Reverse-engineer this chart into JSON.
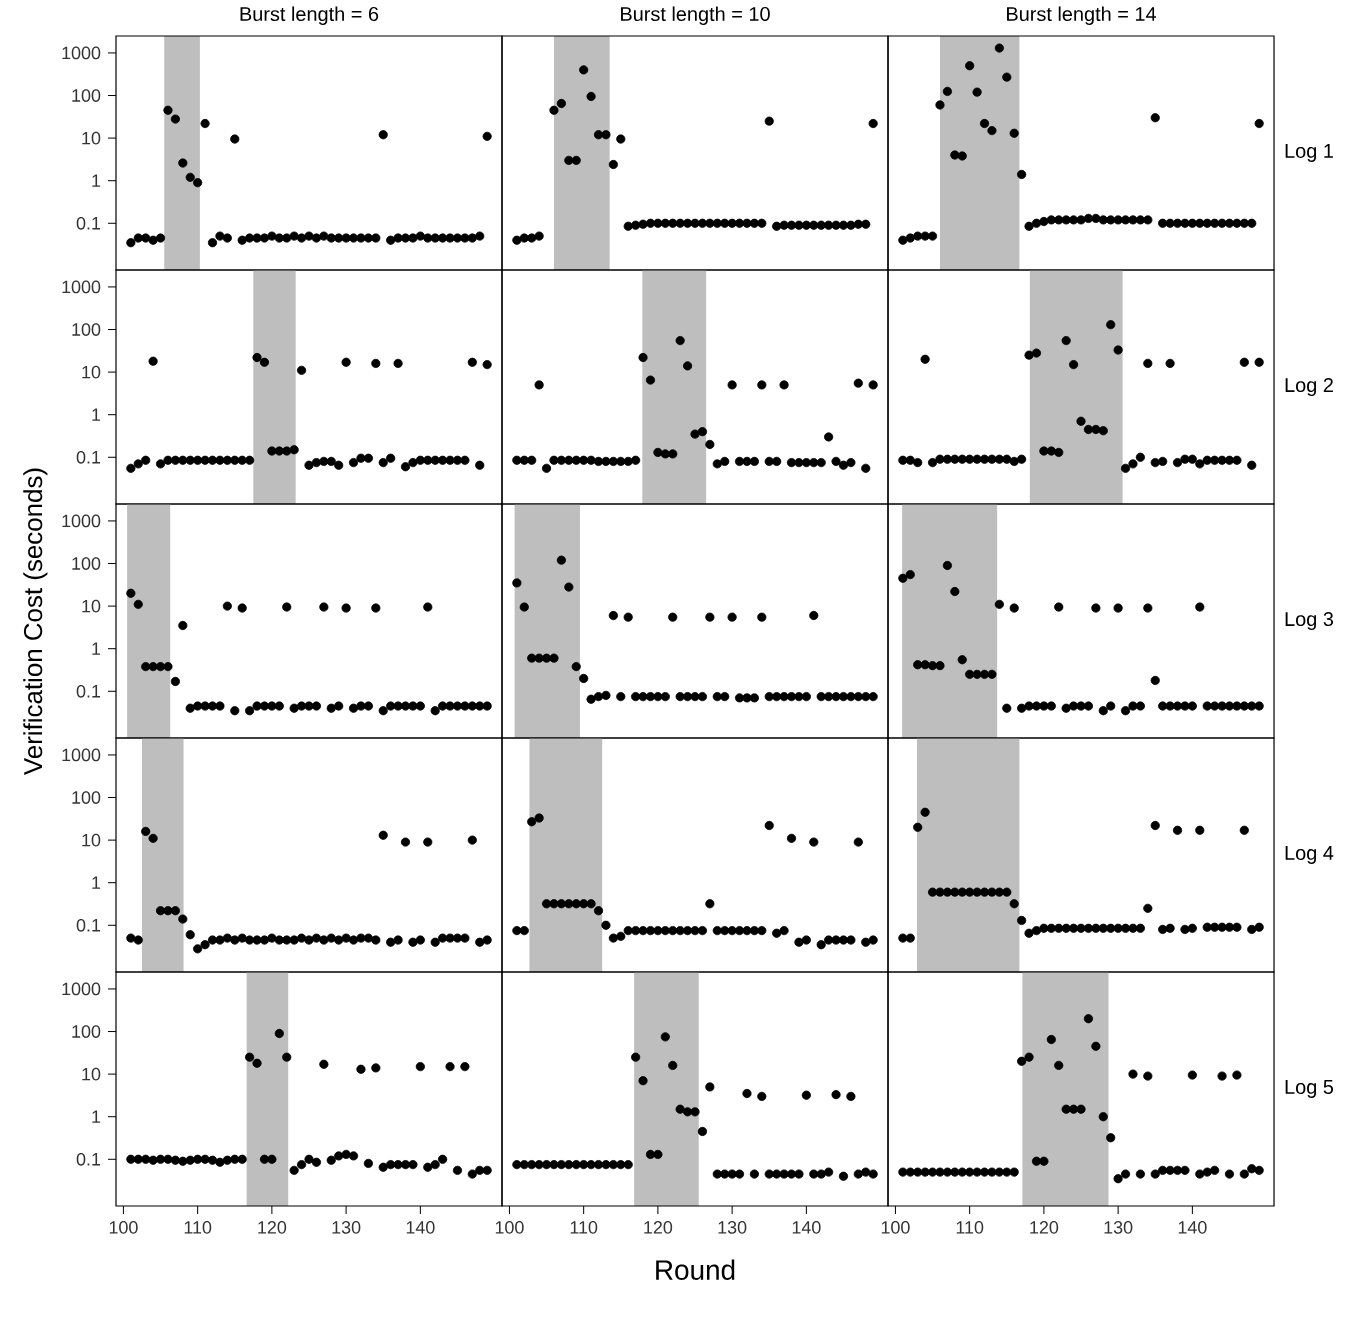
{
  "chart_data": [
    {
      "type": "scatter",
      "title": "Burst length = 6",
      "tick_labels": "y",
      "marker": "circle",
      "color": "#000000",
      "log": true,
      "xlim": [
        99,
        151
      ],
      "ylim": [
        0.008,
        2500
      ],
      "xticks": [
        100,
        110,
        120,
        130,
        140
      ],
      "yticks": [
        0.1,
        1,
        10,
        100,
        1000
      ],
      "bands": [
        {
          "axis": "x",
          "from": 105.5,
          "to": 110.3,
          "color": "#bebebe"
        }
      ],
      "x": [
        101,
        102,
        103,
        104,
        105,
        106,
        107,
        108,
        109,
        110,
        111,
        112,
        113,
        114,
        115,
        116,
        117,
        118,
        119,
        120,
        121,
        122,
        123,
        124,
        125,
        126,
        127,
        128,
        129,
        130,
        131,
        132,
        133,
        134,
        135,
        136,
        137,
        138,
        139,
        140,
        141,
        142,
        143,
        144,
        145,
        146,
        147,
        148,
        149
      ],
      "values": [
        0.035,
        0.045,
        0.045,
        0.04,
        0.045,
        45,
        28,
        2.6,
        1.2,
        0.9,
        22,
        0.035,
        0.05,
        0.045,
        9.5,
        0.04,
        0.045,
        0.045,
        0.045,
        0.05,
        0.045,
        0.045,
        0.05,
        0.045,
        0.05,
        0.045,
        0.05,
        0.045,
        0.045,
        0.045,
        0.045,
        0.045,
        0.045,
        0.045,
        12,
        0.04,
        0.045,
        0.045,
        0.045,
        0.05,
        0.045,
        0.045,
        0.045,
        0.045,
        0.045,
        0.045,
        0.045,
        0.05,
        11
      ]
    },
    {
      "type": "scatter",
      "title": "Burst length = 10",
      "tick_labels": false,
      "marker": "circle",
      "color": "#000000",
      "log": true,
      "xlim": [
        99,
        151
      ],
      "ylim": [
        0.008,
        2500
      ],
      "xticks": [
        100,
        110,
        120,
        130,
        140
      ],
      "yticks": [
        0.1,
        1,
        10,
        100,
        1000
      ],
      "bands": [
        {
          "axis": "x",
          "from": 106,
          "to": 113.5,
          "color": "#bebebe"
        }
      ],
      "x": [
        101,
        102,
        103,
        104,
        105,
        106,
        107,
        108,
        109,
        110,
        111,
        112,
        113,
        114,
        115,
        116,
        117,
        118,
        119,
        120,
        121,
        122,
        123,
        124,
        125,
        126,
        127,
        128,
        129,
        130,
        131,
        132,
        133,
        134,
        135,
        136,
        137,
        138,
        139,
        140,
        141,
        142,
        143,
        144,
        145,
        146,
        147,
        148,
        149
      ],
      "values": [
        0.04,
        0.045,
        0.045,
        0.05,
        null,
        45,
        65,
        3,
        3,
        400,
        95,
        12,
        12,
        2.4,
        9.5,
        0.085,
        0.09,
        0.095,
        0.1,
        0.1,
        0.1,
        0.1,
        0.1,
        0.1,
        0.1,
        0.1,
        0.1,
        0.1,
        0.1,
        0.1,
        0.1,
        0.1,
        0.1,
        0.1,
        25,
        0.085,
        0.09,
        0.09,
        0.09,
        0.09,
        0.09,
        0.09,
        0.09,
        0.09,
        0.09,
        0.09,
        0.095,
        0.095,
        22
      ]
    },
    {
      "type": "scatter",
      "title": "Burst length = 14",
      "annotations": [
        "Log 1"
      ],
      "tick_labels": false,
      "marker": "circle",
      "color": "#000000",
      "log": true,
      "xlim": [
        99,
        151
      ],
      "ylim": [
        0.008,
        2500
      ],
      "xticks": [
        100,
        110,
        120,
        130,
        140
      ],
      "yticks": [
        0.1,
        1,
        10,
        100,
        1000
      ],
      "bands": [
        {
          "axis": "x",
          "from": 106,
          "to": 116.7,
          "color": "#bebebe"
        }
      ],
      "x": [
        101,
        102,
        103,
        104,
        105,
        106,
        107,
        108,
        109,
        110,
        111,
        112,
        113,
        114,
        115,
        116,
        117,
        118,
        119,
        120,
        121,
        122,
        123,
        124,
        125,
        126,
        127,
        128,
        129,
        130,
        131,
        132,
        133,
        134,
        135,
        136,
        137,
        138,
        139,
        140,
        141,
        142,
        143,
        144,
        145,
        146,
        147,
        148,
        149
      ],
      "values": [
        0.04,
        0.045,
        0.05,
        0.05,
        0.05,
        60,
        125,
        4,
        3.8,
        500,
        120,
        22,
        15,
        1300,
        270,
        13,
        1.4,
        0.085,
        0.1,
        0.11,
        0.12,
        0.12,
        0.12,
        0.12,
        0.12,
        0.13,
        0.13,
        0.12,
        0.12,
        0.12,
        0.12,
        0.12,
        0.12,
        0.12,
        30,
        0.1,
        0.1,
        0.1,
        0.1,
        0.1,
        0.1,
        0.1,
        0.1,
        0.1,
        0.1,
        0.1,
        0.1,
        0.1,
        22
      ]
    },
    {
      "type": "scatter",
      "tick_labels": "y",
      "marker": "circle",
      "color": "#000000",
      "log": true,
      "xlim": [
        99,
        151
      ],
      "ylim": [
        0.008,
        2500
      ],
      "xticks": [
        100,
        110,
        120,
        130,
        140
      ],
      "yticks": [
        0.1,
        1,
        10,
        100,
        1000
      ],
      "bands": [
        {
          "axis": "x",
          "from": 117.5,
          "to": 123.2,
          "color": "#bebebe"
        }
      ],
      "x": [
        101,
        102,
        103,
        104,
        105,
        106,
        107,
        108,
        109,
        110,
        111,
        112,
        113,
        114,
        115,
        116,
        117,
        118,
        119,
        120,
        121,
        122,
        123,
        124,
        125,
        126,
        127,
        128,
        129,
        130,
        131,
        132,
        133,
        134,
        135,
        136,
        137,
        138,
        139,
        140,
        141,
        142,
        143,
        144,
        145,
        146,
        147,
        148,
        149
      ],
      "values": [
        0.055,
        0.07,
        0.085,
        18,
        0.07,
        0.085,
        0.085,
        0.085,
        0.085,
        0.085,
        0.085,
        0.085,
        0.085,
        0.085,
        0.085,
        0.085,
        0.085,
        22,
        17,
        0.14,
        0.14,
        0.14,
        0.15,
        11,
        0.065,
        0.075,
        0.08,
        0.08,
        0.065,
        17,
        0.075,
        0.095,
        0.095,
        16,
        0.075,
        0.095,
        16,
        0.06,
        0.075,
        0.085,
        0.085,
        0.085,
        0.085,
        0.085,
        0.085,
        0.085,
        17,
        0.065,
        15
      ]
    },
    {
      "type": "scatter",
      "tick_labels": false,
      "marker": "circle",
      "color": "#000000",
      "log": true,
      "xlim": [
        99,
        151
      ],
      "ylim": [
        0.008,
        2500
      ],
      "xticks": [
        100,
        110,
        120,
        130,
        140
      ],
      "yticks": [
        0.1,
        1,
        10,
        100,
        1000
      ],
      "bands": [
        {
          "axis": "x",
          "from": 117.9,
          "to": 126.5,
          "color": "#bebebe"
        }
      ],
      "x": [
        101,
        102,
        103,
        104,
        105,
        106,
        107,
        108,
        109,
        110,
        111,
        112,
        113,
        114,
        115,
        116,
        117,
        118,
        119,
        120,
        121,
        122,
        123,
        124,
        125,
        126,
        127,
        128,
        129,
        130,
        131,
        132,
        133,
        134,
        135,
        136,
        137,
        138,
        139,
        140,
        141,
        142,
        143,
        144,
        145,
        146,
        147,
        148,
        149
      ],
      "values": [
        0.085,
        0.085,
        0.085,
        5,
        0.055,
        0.085,
        0.085,
        0.085,
        0.085,
        0.085,
        0.085,
        0.08,
        0.08,
        0.08,
        0.08,
        0.08,
        0.085,
        22,
        6.5,
        0.13,
        0.12,
        0.12,
        55,
        14,
        0.35,
        0.4,
        0.2,
        0.07,
        0.08,
        5,
        0.08,
        0.08,
        0.08,
        5,
        0.08,
        0.08,
        5,
        0.075,
        0.075,
        0.075,
        0.075,
        0.075,
        0.3,
        0.08,
        0.065,
        0.075,
        5.5,
        0.055,
        5
      ]
    },
    {
      "type": "scatter",
      "annotations": [
        "Log 2"
      ],
      "tick_labels": false,
      "marker": "circle",
      "color": "#000000",
      "log": true,
      "xlim": [
        99,
        151
      ],
      "ylim": [
        0.008,
        2500
      ],
      "xticks": [
        100,
        110,
        120,
        130,
        140
      ],
      "yticks": [
        0.1,
        1,
        10,
        100,
        1000
      ],
      "bands": [
        {
          "axis": "x",
          "from": 118.1,
          "to": 130.6,
          "color": "#bebebe"
        }
      ],
      "x": [
        101,
        102,
        103,
        104,
        105,
        106,
        107,
        108,
        109,
        110,
        111,
        112,
        113,
        114,
        115,
        116,
        117,
        118,
        119,
        120,
        121,
        122,
        123,
        124,
        125,
        126,
        127,
        128,
        129,
        130,
        131,
        132,
        133,
        134,
        135,
        136,
        137,
        138,
        139,
        140,
        141,
        142,
        143,
        144,
        145,
        146,
        147,
        148,
        149
      ],
      "values": [
        0.085,
        0.085,
        0.075,
        20,
        0.075,
        0.09,
        0.09,
        0.09,
        0.09,
        0.09,
        0.09,
        0.09,
        0.09,
        0.09,
        0.09,
        0.08,
        0.09,
        25,
        28,
        0.14,
        0.14,
        0.13,
        55,
        15,
        0.7,
        0.45,
        0.45,
        0.42,
        130,
        33,
        0.055,
        0.07,
        0.1,
        16,
        0.075,
        0.08,
        16,
        0.075,
        0.09,
        0.09,
        0.07,
        0.085,
        0.085,
        0.085,
        0.085,
        0.085,
        17,
        0.065,
        17
      ]
    },
    {
      "type": "scatter",
      "ylabel": "Verification Cost (seconds)",
      "tick_labels": "y",
      "marker": "circle",
      "color": "#000000",
      "log": true,
      "xlim": [
        99,
        151
      ],
      "ylim": [
        0.008,
        2500
      ],
      "xticks": [
        100,
        110,
        120,
        130,
        140
      ],
      "yticks": [
        0.1,
        1,
        10,
        100,
        1000
      ],
      "bands": [
        {
          "axis": "x",
          "from": 100.5,
          "to": 106.3,
          "color": "#bebebe"
        }
      ],
      "x": [
        101,
        102,
        103,
        104,
        105,
        106,
        107,
        108,
        109,
        110,
        111,
        112,
        113,
        114,
        115,
        116,
        117,
        118,
        119,
        120,
        121,
        122,
        123,
        124,
        125,
        126,
        127,
        128,
        129,
        130,
        131,
        132,
        133,
        134,
        135,
        136,
        137,
        138,
        139,
        140,
        141,
        142,
        143,
        144,
        145,
        146,
        147,
        148,
        149
      ],
      "values": [
        20,
        11,
        0.38,
        0.38,
        0.38,
        0.38,
        0.17,
        3.5,
        0.04,
        0.045,
        0.045,
        0.045,
        0.045,
        10,
        0.035,
        9,
        0.035,
        0.045,
        0.045,
        0.045,
        0.045,
        9.5,
        0.04,
        0.045,
        0.045,
        0.045,
        9.5,
        0.04,
        0.045,
        9,
        0.04,
        0.045,
        0.045,
        9,
        0.035,
        0.045,
        0.045,
        0.045,
        0.045,
        0.045,
        9.5,
        0.035,
        0.045,
        0.045,
        0.045,
        0.045,
        0.045,
        0.045,
        0.045
      ]
    },
    {
      "type": "scatter",
      "tick_labels": false,
      "marker": "circle",
      "color": "#000000",
      "log": true,
      "xlim": [
        99,
        151
      ],
      "ylim": [
        0.008,
        2500
      ],
      "xticks": [
        100,
        110,
        120,
        130,
        140
      ],
      "yticks": [
        0.1,
        1,
        10,
        100,
        1000
      ],
      "bands": [
        {
          "axis": "x",
          "from": 100.7,
          "to": 109.5,
          "color": "#bebebe"
        }
      ],
      "x": [
        101,
        102,
        103,
        104,
        105,
        106,
        107,
        108,
        109,
        110,
        111,
        112,
        113,
        114,
        115,
        116,
        117,
        118,
        119,
        120,
        121,
        122,
        123,
        124,
        125,
        126,
        127,
        128,
        129,
        130,
        131,
        132,
        133,
        134,
        135,
        136,
        137,
        138,
        139,
        140,
        141,
        142,
        143,
        144,
        145,
        146,
        147,
        148,
        149
      ],
      "values": [
        35,
        9.5,
        0.6,
        0.6,
        0.6,
        0.6,
        120,
        28,
        0.38,
        0.2,
        0.065,
        0.075,
        0.08,
        6,
        0.075,
        5.5,
        0.075,
        0.075,
        0.075,
        0.075,
        0.075,
        5.5,
        0.075,
        0.075,
        0.075,
        0.075,
        5.5,
        0.075,
        0.075,
        5.5,
        0.07,
        0.07,
        0.07,
        5.5,
        0.075,
        0.075,
        0.075,
        0.075,
        0.075,
        0.075,
        6,
        0.075,
        0.075,
        0.075,
        0.075,
        0.075,
        0.075,
        0.075,
        0.075
      ]
    },
    {
      "type": "scatter",
      "annotations": [
        "Log 3"
      ],
      "tick_labels": false,
      "marker": "circle",
      "color": "#000000",
      "log": true,
      "xlim": [
        99,
        151
      ],
      "ylim": [
        0.008,
        2500
      ],
      "xticks": [
        100,
        110,
        120,
        130,
        140
      ],
      "yticks": [
        0.1,
        1,
        10,
        100,
        1000
      ],
      "bands": [
        {
          "axis": "x",
          "from": 100.9,
          "to": 113.7,
          "color": "#bebebe"
        }
      ],
      "x": [
        101,
        102,
        103,
        104,
        105,
        106,
        107,
        108,
        109,
        110,
        111,
        112,
        113,
        114,
        115,
        116,
        117,
        118,
        119,
        120,
        121,
        122,
        123,
        124,
        125,
        126,
        127,
        128,
        129,
        130,
        131,
        132,
        133,
        134,
        135,
        136,
        137,
        138,
        139,
        140,
        141,
        142,
        143,
        144,
        145,
        146,
        147,
        148,
        149
      ],
      "values": [
        45,
        55,
        0.42,
        0.42,
        0.4,
        0.4,
        90,
        22,
        0.55,
        0.25,
        0.25,
        0.25,
        0.25,
        11,
        0.04,
        9,
        0.04,
        0.045,
        0.045,
        0.045,
        0.045,
        9.5,
        0.04,
        0.045,
        0.045,
        0.045,
        9,
        0.035,
        0.045,
        9,
        0.035,
        0.045,
        0.045,
        9,
        0.18,
        0.045,
        0.045,
        0.045,
        0.045,
        0.045,
        9.5,
        0.045,
        0.045,
        0.045,
        0.045,
        0.045,
        0.045,
        0.045,
        0.045
      ]
    },
    {
      "type": "scatter",
      "tick_labels": "y",
      "marker": "circle",
      "color": "#000000",
      "log": true,
      "xlim": [
        99,
        151
      ],
      "ylim": [
        0.008,
        2500
      ],
      "xticks": [
        100,
        110,
        120,
        130,
        140
      ],
      "yticks": [
        0.1,
        1,
        10,
        100,
        1000
      ],
      "bands": [
        {
          "axis": "x",
          "from": 102.5,
          "to": 108.1,
          "color": "#bebebe"
        }
      ],
      "x": [
        101,
        102,
        103,
        104,
        105,
        106,
        107,
        108,
        109,
        110,
        111,
        112,
        113,
        114,
        115,
        116,
        117,
        118,
        119,
        120,
        121,
        122,
        123,
        124,
        125,
        126,
        127,
        128,
        129,
        130,
        131,
        132,
        133,
        134,
        135,
        136,
        137,
        138,
        139,
        140,
        141,
        142,
        143,
        144,
        145,
        146,
        147,
        148,
        149
      ],
      "values": [
        0.05,
        0.045,
        16,
        11,
        0.22,
        0.22,
        0.22,
        0.14,
        0.06,
        0.028,
        0.035,
        0.045,
        0.045,
        0.05,
        0.045,
        0.05,
        0.045,
        0.045,
        0.045,
        0.05,
        0.045,
        0.045,
        0.045,
        0.05,
        0.045,
        0.05,
        0.045,
        0.05,
        0.045,
        0.05,
        0.045,
        0.05,
        0.05,
        0.045,
        13,
        0.04,
        0.045,
        9,
        0.04,
        0.045,
        9,
        0.04,
        0.05,
        0.05,
        0.05,
        0.05,
        10,
        0.04,
        0.045
      ]
    },
    {
      "type": "scatter",
      "tick_labels": false,
      "marker": "circle",
      "color": "#000000",
      "log": true,
      "xlim": [
        99,
        151
      ],
      "ylim": [
        0.008,
        2500
      ],
      "xticks": [
        100,
        110,
        120,
        130,
        140
      ],
      "yticks": [
        0.1,
        1,
        10,
        100,
        1000
      ],
      "bands": [
        {
          "axis": "x",
          "from": 102.7,
          "to": 112.5,
          "color": "#bebebe"
        }
      ],
      "x": [
        101,
        102,
        103,
        104,
        105,
        106,
        107,
        108,
        109,
        110,
        111,
        112,
        113,
        114,
        115,
        116,
        117,
        118,
        119,
        120,
        121,
        122,
        123,
        124,
        125,
        126,
        127,
        128,
        129,
        130,
        131,
        132,
        133,
        134,
        135,
        136,
        137,
        138,
        139,
        140,
        141,
        142,
        143,
        144,
        145,
        146,
        147,
        148,
        149
      ],
      "values": [
        0.075,
        0.075,
        27,
        33,
        0.32,
        0.32,
        0.32,
        0.32,
        0.32,
        0.32,
        0.32,
        0.22,
        0.1,
        0.05,
        0.055,
        0.075,
        0.075,
        0.075,
        0.075,
        0.075,
        0.075,
        0.075,
        0.075,
        0.075,
        0.075,
        0.075,
        0.32,
        0.075,
        0.075,
        0.075,
        0.075,
        0.075,
        0.075,
        0.075,
        22,
        0.065,
        0.075,
        11,
        0.04,
        0.045,
        9,
        0.035,
        0.045,
        0.045,
        0.045,
        0.045,
        9,
        0.04,
        0.045
      ]
    },
    {
      "type": "scatter",
      "annotations": [
        "Log 4"
      ],
      "tick_labels": false,
      "marker": "circle",
      "color": "#000000",
      "log": true,
      "xlim": [
        99,
        151
      ],
      "ylim": [
        0.008,
        2500
      ],
      "xticks": [
        100,
        110,
        120,
        130,
        140
      ],
      "yticks": [
        0.1,
        1,
        10,
        100,
        1000
      ],
      "bands": [
        {
          "axis": "x",
          "from": 102.9,
          "to": 116.7,
          "color": "#bebebe"
        }
      ],
      "x": [
        101,
        102,
        103,
        104,
        105,
        106,
        107,
        108,
        109,
        110,
        111,
        112,
        113,
        114,
        115,
        116,
        117,
        118,
        119,
        120,
        121,
        122,
        123,
        124,
        125,
        126,
        127,
        128,
        129,
        130,
        131,
        132,
        133,
        134,
        135,
        136,
        137,
        138,
        139,
        140,
        141,
        142,
        143,
        144,
        145,
        146,
        147,
        148,
        149
      ],
      "values": [
        0.05,
        0.05,
        20,
        45,
        0.6,
        0.6,
        0.6,
        0.6,
        0.6,
        0.6,
        0.6,
        0.6,
        0.6,
        0.6,
        0.6,
        0.32,
        0.13,
        0.065,
        0.075,
        0.085,
        0.085,
        0.085,
        0.085,
        0.085,
        0.085,
        0.085,
        0.085,
        0.085,
        0.085,
        0.085,
        0.085,
        0.085,
        0.085,
        0.25,
        22,
        0.08,
        0.085,
        17,
        0.08,
        0.085,
        17,
        0.09,
        0.09,
        0.09,
        0.09,
        0.09,
        17,
        0.08,
        0.09
      ]
    },
    {
      "type": "scatter",
      "marker": "circle",
      "color": "#000000",
      "log": true,
      "xlim": [
        99,
        151
      ],
      "ylim": [
        0.008,
        2500
      ],
      "xticks": [
        100,
        110,
        120,
        130,
        140
      ],
      "yticks": [
        0.1,
        1,
        10,
        100,
        1000
      ],
      "bands": [
        {
          "axis": "x",
          "from": 116.6,
          "to": 122.2,
          "color": "#bebebe"
        }
      ],
      "x": [
        101,
        102,
        103,
        104,
        105,
        106,
        107,
        108,
        109,
        110,
        111,
        112,
        113,
        114,
        115,
        116,
        117,
        118,
        119,
        120,
        121,
        122,
        123,
        124,
        125,
        126,
        127,
        128,
        129,
        130,
        131,
        132,
        133,
        134,
        135,
        136,
        137,
        138,
        139,
        140,
        141,
        142,
        143,
        144,
        145,
        146,
        147,
        148,
        149
      ],
      "values": [
        0.1,
        0.1,
        0.1,
        0.095,
        0.1,
        0.1,
        0.095,
        0.09,
        0.095,
        0.1,
        0.1,
        0.095,
        0.085,
        0.095,
        0.1,
        0.1,
        25,
        18,
        0.1,
        0.1,
        90,
        25,
        0.055,
        0.075,
        0.1,
        0.085,
        17,
        0.095,
        0.12,
        0.13,
        0.12,
        13,
        0.08,
        14,
        0.065,
        0.075,
        0.075,
        0.075,
        0.075,
        15,
        0.065,
        0.075,
        0.1,
        15,
        0.055,
        15,
        0.045,
        0.055,
        0.055
      ]
    },
    {
      "type": "scatter",
      "xlabel": "Round",
      "tick_labels": "x",
      "marker": "circle",
      "color": "#000000",
      "log": true,
      "xlim": [
        99,
        151
      ],
      "ylim": [
        0.008,
        2500
      ],
      "xticks": [
        100,
        110,
        120,
        130,
        140
      ],
      "yticks": [
        0.1,
        1,
        10,
        100,
        1000
      ],
      "bands": [
        {
          "axis": "x",
          "from": 116.8,
          "to": 125.5,
          "color": "#bebebe"
        }
      ],
      "x": [
        101,
        102,
        103,
        104,
        105,
        106,
        107,
        108,
        109,
        110,
        111,
        112,
        113,
        114,
        115,
        116,
        117,
        118,
        119,
        120,
        121,
        122,
        123,
        124,
        125,
        126,
        127,
        128,
        129,
        130,
        131,
        132,
        133,
        134,
        135,
        136,
        137,
        138,
        139,
        140,
        141,
        142,
        143,
        144,
        145,
        146,
        147,
        148,
        149
      ],
      "values": [
        0.075,
        0.075,
        0.075,
        0.075,
        0.075,
        0.075,
        0.075,
        0.075,
        0.075,
        0.075,
        0.075,
        0.075,
        0.075,
        0.075,
        0.075,
        0.075,
        25,
        7,
        0.13,
        0.13,
        75,
        16,
        1.5,
        1.3,
        1.3,
        0.45,
        5,
        0.045,
        0.045,
        0.045,
        0.045,
        3.5,
        0.045,
        3,
        0.045,
        0.045,
        0.045,
        0.045,
        0.045,
        3.2,
        0.045,
        0.045,
        0.05,
        3.3,
        0.04,
        3,
        0.045,
        0.05,
        0.045
      ]
    },
    {
      "type": "scatter",
      "annotations": [
        "Log 5"
      ],
      "tick_labels": "x",
      "marker": "circle",
      "color": "#000000",
      "log": true,
      "xlim": [
        99,
        151
      ],
      "ylim": [
        0.008,
        2500
      ],
      "xticks": [
        100,
        110,
        120,
        130,
        140
      ],
      "yticks": [
        0.1,
        1,
        10,
        100,
        1000
      ],
      "bands": [
        {
          "axis": "x",
          "from": 117.1,
          "to": 128.7,
          "color": "#bebebe"
        }
      ],
      "x": [
        101,
        102,
        103,
        104,
        105,
        106,
        107,
        108,
        109,
        110,
        111,
        112,
        113,
        114,
        115,
        116,
        117,
        118,
        119,
        120,
        121,
        122,
        123,
        124,
        125,
        126,
        127,
        128,
        129,
        130,
        131,
        132,
        133,
        134,
        135,
        136,
        137,
        138,
        139,
        140,
        141,
        142,
        143,
        144,
        145,
        146,
        147,
        148,
        149
      ],
      "values": [
        0.05,
        0.05,
        0.05,
        0.05,
        0.05,
        0.05,
        0.05,
        0.05,
        0.05,
        0.05,
        0.05,
        0.05,
        0.05,
        0.05,
        0.05,
        0.05,
        20,
        25,
        0.09,
        0.09,
        65,
        16,
        1.5,
        1.5,
        1.5,
        200,
        45,
        1,
        0.32,
        0.035,
        0.045,
        10,
        0.045,
        9,
        0.045,
        0.055,
        0.055,
        0.055,
        0.055,
        9.5,
        0.045,
        0.05,
        0.055,
        9,
        0.045,
        9.5,
        0.045,
        0.06,
        0.055
      ]
    }
  ]
}
